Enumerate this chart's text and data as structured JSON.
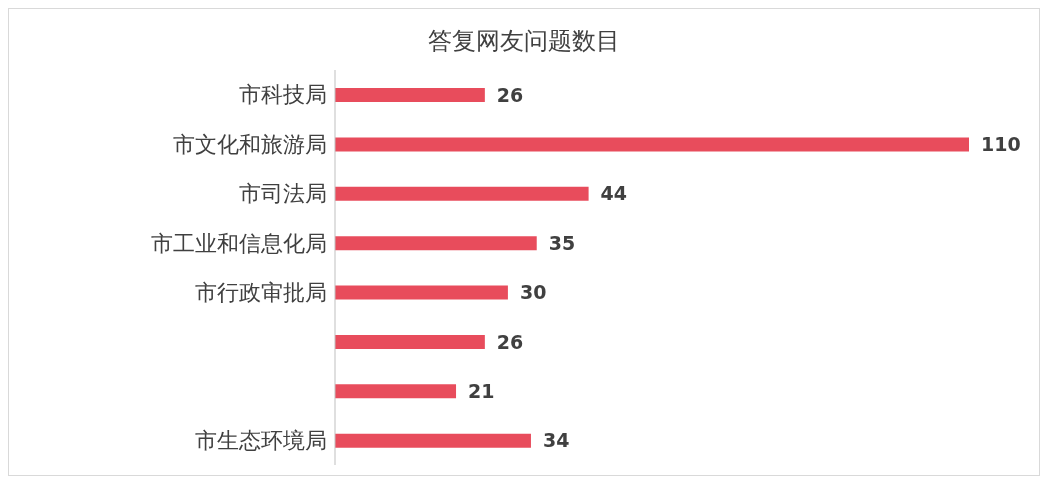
{
  "chart_data": {
    "type": "bar",
    "orientation": "horizontal",
    "title": "答复网友问题数目",
    "categories": [
      "市科技局",
      "市文化和旅游局",
      "市司法局",
      "市工业和信息化局",
      "市行政审批局",
      null,
      null,
      "市生态环境局"
    ],
    "values": [
      26,
      110,
      44,
      35,
      30,
      26,
      21,
      34
    ],
    "color": "#e84c5c",
    "data_labels": true
  }
}
